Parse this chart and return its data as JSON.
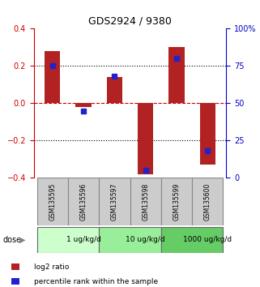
{
  "title": "GDS2924 / 9380",
  "samples": [
    "GSM135595",
    "GSM135596",
    "GSM135597",
    "GSM135598",
    "GSM135599",
    "GSM135600"
  ],
  "log2_ratio": [
    0.28,
    -0.02,
    0.14,
    -0.38,
    0.3,
    -0.33
  ],
  "percentile_rank": [
    75,
    45,
    68,
    5,
    80,
    18
  ],
  "bar_color": "#b22222",
  "dot_color": "#2222cc",
  "left_ylim": [
    -0.4,
    0.4
  ],
  "right_ylim": [
    0,
    100
  ],
  "left_yticks": [
    -0.4,
    -0.2,
    0.0,
    0.2,
    0.4
  ],
  "right_yticks": [
    0,
    25,
    50,
    75,
    100
  ],
  "right_yticklabels": [
    "0",
    "25",
    "50",
    "75",
    "100%"
  ],
  "left_ytick_color": "#cc0000",
  "right_ytick_color": "#0000cc",
  "hlines": [
    -0.2,
    0.0,
    0.2
  ],
  "hline_styles": [
    "dotted",
    "dashed",
    "dotted"
  ],
  "hline_colors": [
    "black",
    "#cc0000",
    "black"
  ],
  "dose_groups": [
    {
      "label": "1 ug/kg/d",
      "start": 0,
      "end": 2,
      "color": "#ccffcc"
    },
    {
      "label": "10 ug/kg/d",
      "start": 2,
      "end": 4,
      "color": "#99ee99"
    },
    {
      "label": "1000 ug/kg/d",
      "start": 4,
      "end": 6,
      "color": "#66cc66"
    }
  ],
  "dose_label": "dose",
  "legend_items": [
    {
      "label": "log2 ratio",
      "color": "#b22222"
    },
    {
      "label": "percentile rank within the sample",
      "color": "#2222cc"
    }
  ],
  "bar_width": 0.5,
  "dot_size": 5,
  "sample_box_color": "#cccccc",
  "sample_box_edge": "#888888"
}
